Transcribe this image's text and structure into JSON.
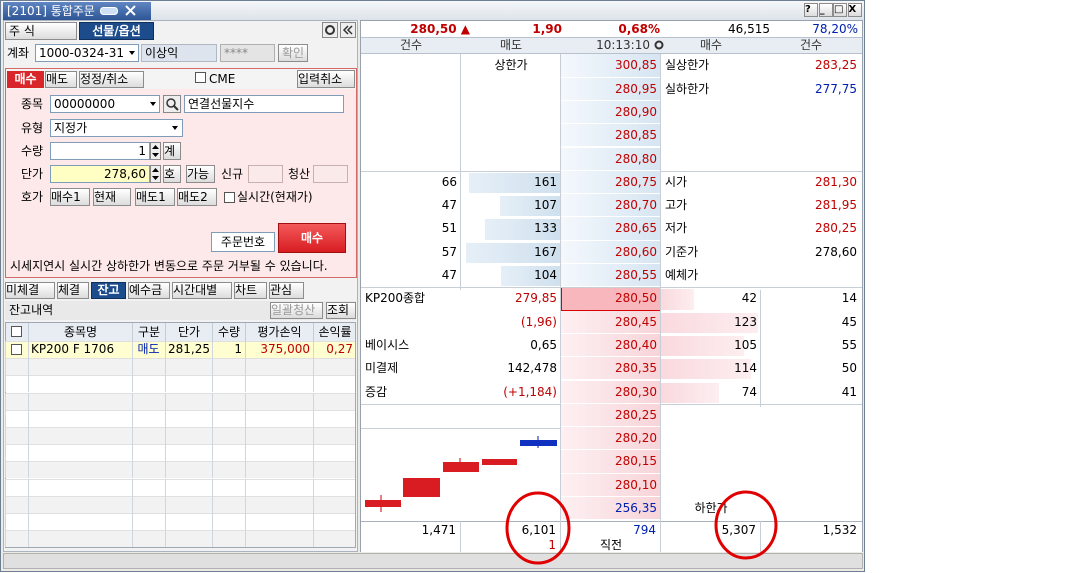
{
  "window": {
    "title": "[2101] 통합주문",
    "buttons": [
      "?",
      "_",
      "□",
      "X"
    ]
  },
  "left": {
    "market_tabs": [
      "주 식",
      "선물/옵션"
    ],
    "account": {
      "label": "계좌",
      "number": "1000-0324-31",
      "name": "이상익",
      "password": "****",
      "confirm": "확인"
    },
    "order_tabs": [
      "매수",
      "매도",
      "정정/취소"
    ],
    "cme": "CME",
    "cancel_input": "입력취소",
    "fields": {
      "symbol_label": "종목",
      "symbol_code": "00000000",
      "symbol_name": "연결선물지수",
      "type_label": "유형",
      "type_value": "지정가",
      "qty_label": "수량",
      "qty_value": "1",
      "qty_button": "계",
      "price_label": "단가",
      "price_value": "278,60",
      "price_buttons": [
        "호",
        "가능"
      ],
      "new_label": "신규",
      "close_label": "청산",
      "quote_label": "호가",
      "quote_buttons": [
        "매수1",
        "현재",
        "매도1",
        "매도2"
      ],
      "realtime": "실시간(현재가)",
      "order_no": "주문번호",
      "submit": "매수"
    },
    "notice": "시세지연시 실시간 상하한가 변동으로 주문 거부될 수 있습니다.",
    "bottom_tabs": [
      "미체결",
      "체결",
      "잔고",
      "예수금",
      "시간대별",
      "차트",
      "관심"
    ],
    "balance": {
      "title": "잔고내역",
      "buttons": [
        "일괄청산",
        "조회"
      ],
      "columns": [
        "종목명",
        "구분",
        "단가",
        "수량",
        "평가손익",
        "손익률"
      ],
      "rows": [
        [
          "KP200 F 1706",
          "매도",
          "281,25",
          "1",
          "375,000",
          "0,27"
        ]
      ]
    }
  },
  "orderbook": {
    "summary": {
      "price": "280,50 ▲",
      "change": "1,90",
      "change_rate": "0,68%",
      "volume": "46,515",
      "ratio": "78,20%"
    },
    "header": [
      "건수",
      "매도",
      "10:13:10",
      "매수",
      "건수"
    ],
    "rows": [
      {
        "price": "300,85",
        "price_color": "#c00000",
        "sell_label": "상한가",
        "right_label": "실상한가",
        "right_value": "283,25",
        "right_value_color": "#c00000"
      },
      {
        "price": "280,95",
        "price_color": "#c00000",
        "right_label": "실하한가",
        "right_value": "277,75",
        "right_value_color": "#0020b0"
      },
      {
        "price": "280,90",
        "price_color": "#c00000"
      },
      {
        "price": "280,85",
        "price_color": "#c00000"
      },
      {
        "price": "280,80",
        "price_color": "#c00000"
      },
      {
        "price": "280,75",
        "price_color": "#c00000",
        "sell_count": 66,
        "sell_qty": 161,
        "right_label": "시가",
        "right_value": "281,30",
        "right_value_color": "#c00000"
      },
      {
        "price": "280,70",
        "price_color": "#c00000",
        "sell_count": 47,
        "sell_qty": 107,
        "right_label": "고가",
        "right_value": "281,95",
        "right_value_color": "#c00000"
      },
      {
        "price": "280,65",
        "price_color": "#c00000",
        "sell_count": 51,
        "sell_qty": 133,
        "right_label": "저가",
        "right_value": "280,25",
        "right_value_color": "#c00000"
      },
      {
        "price": "280,60",
        "price_color": "#c00000",
        "sell_count": 57,
        "sell_qty": 167,
        "right_label": "기준가",
        "right_value": "278,60",
        "right_value_color": "#000000"
      },
      {
        "price": "280,55",
        "price_color": "#c00000",
        "sell_count": 47,
        "sell_qty": 104,
        "right_label": "예체가"
      },
      {
        "price": "280,50",
        "price_color": "#c00000",
        "left_label": "KP200종합",
        "left_value": "279,85",
        "left_value_color": "#c00000",
        "buy_qty": 42,
        "buy_count": 14
      },
      {
        "price": "280,45",
        "price_color": "#c00000",
        "left_value": "(1,96)",
        "left_value_color": "#c00000",
        "buy_qty": 123,
        "buy_count": 45
      },
      {
        "price": "280,40",
        "price_color": "#c00000",
        "left_label": "베이시스",
        "left_value": "0,65",
        "left_value_color": "#000000",
        "buy_qty": 105,
        "buy_count": 55
      },
      {
        "price": "280,35",
        "price_color": "#c00000",
        "left_label": "미결제",
        "left_value": "142,478",
        "left_value_color": "#000000",
        "buy_qty": 114,
        "buy_count": 50
      },
      {
        "price": "280,30",
        "price_color": "#c00000",
        "left_label": "증감",
        "left_value": "(+1,184)",
        "left_value_color": "#c00000",
        "buy_qty": 74,
        "buy_count": 41
      },
      {
        "price": "280,25",
        "price_color": "#c00000"
      },
      {
        "price": "280,20",
        "price_color": "#c00000"
      },
      {
        "price": "280,15",
        "price_color": "#c00000"
      },
      {
        "price": "280,10",
        "price_color": "#c00000"
      },
      {
        "price": "256,35",
        "price_color": "#0020b0",
        "buy_label": "하한가"
      }
    ],
    "footer": {
      "sell_count": "1,471",
      "sell_qty": "6,101",
      "sell_qty_change": "1",
      "last": 794,
      "last_label": "직전",
      "buy_qty": "5,307",
      "buy_count": "1,532"
    }
  }
}
